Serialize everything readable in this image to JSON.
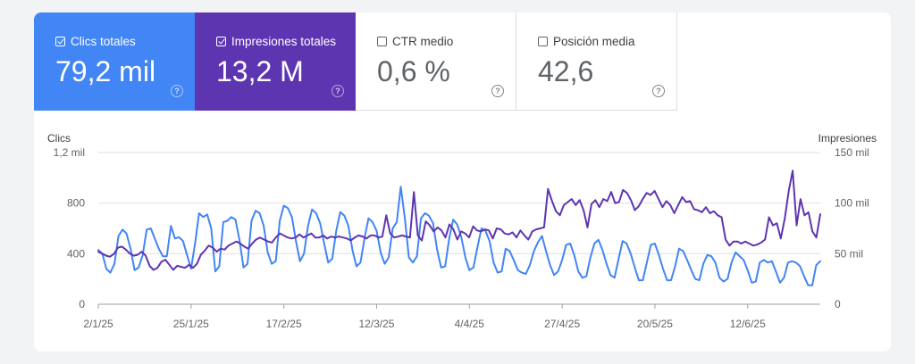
{
  "metrics": [
    {
      "label": "Clics totales",
      "value": "79,2 mil",
      "checked": true,
      "color": "#4285f4"
    },
    {
      "label": "Impresiones totales",
      "value": "13,2 M",
      "checked": true,
      "color": "#5e35b1"
    },
    {
      "label": "CTR medio",
      "value": "0,6 %",
      "checked": false,
      "color": "#ffffff"
    },
    {
      "label": "Posición media",
      "value": "42,6",
      "checked": false,
      "color": "#ffffff"
    }
  ],
  "help_glyph": "?",
  "chart_data": {
    "type": "line",
    "y_left_label": "Clics",
    "y_right_label": "Impresiones",
    "y_left_ticks": [
      "0",
      "400",
      "800",
      "1,2 mil"
    ],
    "y_left_range": [
      0,
      1200
    ],
    "y_right_ticks": [
      "0",
      "50 mil",
      "100 mil",
      "150 mil"
    ],
    "y_right_range": [
      0,
      150000
    ],
    "x_ticks": [
      "2/1/25",
      "25/1/25",
      "17/2/25",
      "12/3/25",
      "4/4/25",
      "27/4/25",
      "20/5/25",
      "12/6/25"
    ],
    "x_tick_day_index": [
      0,
      23,
      46,
      69,
      92,
      115,
      138,
      161
    ],
    "x_range_days": [
      0,
      179
    ],
    "grid": true,
    "series": [
      {
        "name": "Clics totales",
        "axis": "left",
        "color": "#4285f4",
        "values": [
          430,
          400,
          280,
          250,
          320,
          540,
          590,
          560,
          440,
          270,
          290,
          390,
          590,
          600,
          520,
          440,
          380,
          380,
          620,
          520,
          530,
          500,
          390,
          280,
          480,
          720,
          690,
          710,
          600,
          260,
          300,
          650,
          660,
          690,
          670,
          510,
          290,
          320,
          660,
          740,
          720,
          620,
          410,
          320,
          340,
          660,
          780,
          760,
          690,
          500,
          340,
          400,
          620,
          750,
          720,
          640,
          480,
          330,
          360,
          580,
          730,
          700,
          620,
          430,
          300,
          330,
          520,
          680,
          650,
          580,
          410,
          320,
          370,
          600,
          650,
          930,
          680,
          370,
          330,
          380,
          680,
          720,
          700,
          640,
          430,
          290,
          300,
          520,
          670,
          630,
          530,
          370,
          270,
          290,
          450,
          600,
          580,
          500,
          330,
          250,
          260,
          440,
          420,
          350,
          270,
          250,
          240,
          310,
          420,
          490,
          540,
          420,
          310,
          230,
          260,
          350,
          470,
          480,
          390,
          260,
          210,
          220,
          370,
          480,
          510,
          430,
          320,
          230,
          210,
          360,
          500,
          480,
          400,
          290,
          190,
          190,
          330,
          470,
          480,
          390,
          280,
          190,
          190,
          300,
          440,
          420,
          350,
          270,
          200,
          190,
          320,
          390,
          380,
          330,
          210,
          180,
          200,
          330,
          410,
          380,
          350,
          270,
          170,
          180,
          330,
          350,
          330,
          340,
          260,
          170,
          210,
          330,
          340,
          330,
          300,
          220,
          150,
          150,
          310,
          340
        ],
        "values_scale_note": "values in clicks"
      },
      {
        "name": "Impresiones totales",
        "axis": "right",
        "color": "#5e35b1",
        "values": [
          52000,
          50000,
          48000,
          47000,
          50000,
          56000,
          57000,
          54000,
          50000,
          48000,
          49000,
          52000,
          48000,
          38000,
          34000,
          36000,
          42000,
          44000,
          39000,
          34000,
          38000,
          37000,
          36000,
          39000,
          36000,
          40000,
          49000,
          53000,
          58000,
          56000,
          52000,
          55000,
          54000,
          58000,
          60000,
          62000,
          60000,
          57000,
          55000,
          60000,
          64000,
          66000,
          64000,
          62000,
          61000,
          66000,
          70000,
          68000,
          66000,
          65000,
          66000,
          69000,
          66000,
          68000,
          70000,
          66000,
          66000,
          68000,
          65000,
          67000,
          66000,
          67000,
          66000,
          65000,
          63000,
          66000,
          68000,
          67000,
          65000,
          68000,
          68000,
          66000,
          67000,
          88000,
          70000,
          66000,
          67000,
          68000,
          67000,
          66000,
          111000,
          68000,
          63000,
          82000,
          78000,
          72000,
          76000,
          73000,
          66000,
          79000,
          74000,
          64000,
          72000,
          70000,
          66000,
          77000,
          73000,
          72000,
          74000,
          73000,
          65000,
          75000,
          74000,
          70000,
          69000,
          71000,
          66000,
          73000,
          68000,
          64000,
          72000,
          74000,
          75000,
          76000,
          114000,
          102000,
          92000,
          88000,
          98000,
          101000,
          104000,
          98000,
          103000,
          93000,
          76000,
          99000,
          103000,
          96000,
          104000,
          102000,
          111000,
          100000,
          101000,
          113000,
          110000,
          103000,
          93000,
          97000,
          104000,
          110000,
          108000,
          112000,
          104000,
          96000,
          102000,
          98000,
          90000,
          98000,
          106000,
          101000,
          102000,
          94000,
          93000,
          91000,
          96000,
          90000,
          92000,
          88000,
          86000,
          64000,
          58000,
          62000,
          62000,
          60000,
          62000,
          60000,
          58000,
          59000,
          61000,
          64000,
          86000,
          78000,
          80000,
          65000,
          85000,
          112000,
          132000,
          78000,
          104000,
          88000,
          91000,
          72000,
          66000,
          89000
        ],
        "values_scale_note": "values in impressions"
      }
    ]
  }
}
